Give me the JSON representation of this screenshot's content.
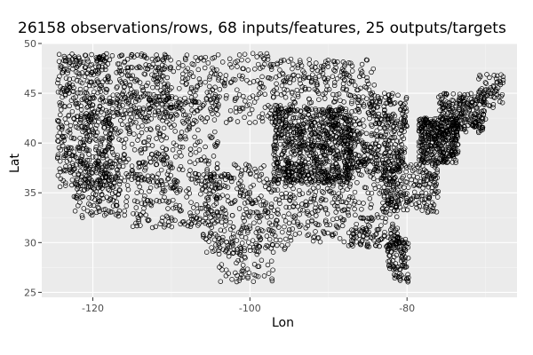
{
  "chart_data": {
    "type": "scatter",
    "title": "26158 observations/rows, 68 inputs/features, 25 outputs/targets",
    "xlabel": "Lon",
    "ylabel": "Lat",
    "xlim": [
      -126.5,
      -66.0
    ],
    "ylim": [
      24.5,
      50.0
    ],
    "xticks": [
      -120,
      -100,
      -80
    ],
    "yticks": [
      25,
      30,
      35,
      40,
      45,
      50
    ],
    "grid": true,
    "marker": "open-circle",
    "colors": {
      "panel": "#ebebeb",
      "grid_major": "#ffffff",
      "grid_minor": "#f5f5f5",
      "point": "#000000"
    },
    "point_regions": [
      {
        "lon": [
          -124.5,
          -117.5
        ],
        "lat": [
          35.5,
          49.0
        ],
        "n": 520
      },
      {
        "lon": [
          -122.5,
          -116.5
        ],
        "lat": [
          32.5,
          38.5
        ],
        "n": 160
      },
      {
        "lon": [
          -117.0,
          -110.0
        ],
        "lat": [
          42.5,
          49.0
        ],
        "n": 220
      },
      {
        "lon": [
          -118.0,
          -104.0
        ],
        "lat": [
          36.0,
          45.0
        ],
        "n": 320
      },
      {
        "lon": [
          -116.0,
          -104.0
        ],
        "lat": [
          31.5,
          37.0
        ],
        "n": 190
      },
      {
        "lon": [
          -110.0,
          -97.0
        ],
        "lat": [
          42.0,
          49.0
        ],
        "n": 210
      },
      {
        "lon": [
          -106.0,
          -95.0
        ],
        "lat": [
          29.0,
          38.0
        ],
        "n": 320
      },
      {
        "lon": [
          -104.0,
          -97.0
        ],
        "lat": [
          26.0,
          30.0
        ],
        "n": 70
      },
      {
        "lon": [
          -97.0,
          -87.0
        ],
        "lat": [
          36.0,
          43.5
        ],
        "n": 750
      },
      {
        "lon": [
          -97.0,
          -84.0
        ],
        "lat": [
          43.0,
          48.5
        ],
        "n": 230
      },
      {
        "lon": [
          -95.0,
          -81.0
        ],
        "lat": [
          30.0,
          37.0
        ],
        "n": 290
      },
      {
        "lon": [
          -88.0,
          -80.0
        ],
        "lat": [
          37.0,
          42.5
        ],
        "n": 300
      },
      {
        "lon": [
          -85.0,
          -80.0
        ],
        "lat": [
          41.5,
          45.0
        ],
        "n": 90
      },
      {
        "lon": [
          -83.0,
          -76.0
        ],
        "lat": [
          33.0,
          38.0
        ],
        "n": 210
      },
      {
        "lon": [
          -78.5,
          -73.5
        ],
        "lat": [
          38.0,
          42.5
        ],
        "n": 380
      },
      {
        "lon": [
          -76.0,
          -70.0
        ],
        "lat": [
          41.0,
          45.0
        ],
        "n": 230
      },
      {
        "lon": [
          -71.0,
          -67.5
        ],
        "lat": [
          43.5,
          47.0
        ],
        "n": 60
      },
      {
        "lon": [
          -82.5,
          -79.8
        ],
        "lat": [
          26.0,
          30.5
        ],
        "n": 110
      },
      {
        "lon": [
          -87.5,
          -81.0
        ],
        "lat": [
          29.5,
          31.5
        ],
        "n": 60
      }
    ]
  }
}
